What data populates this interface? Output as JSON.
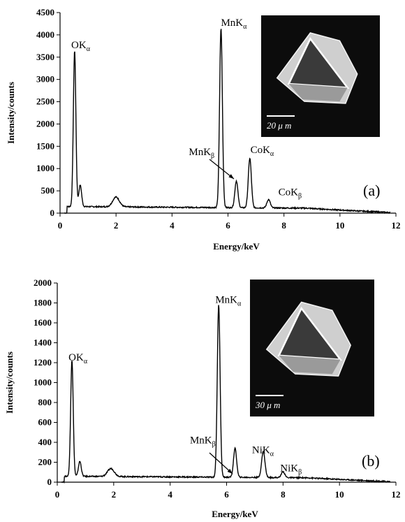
{
  "chart_data": [
    {
      "type": "line",
      "panel_label": "(a)",
      "xlabel": "Energy/keV",
      "ylabel": "Intensity/counts",
      "xlim": [
        0,
        12
      ],
      "ylim": [
        0,
        4500
      ],
      "xticks": [
        0,
        2,
        4,
        6,
        8,
        10,
        12
      ],
      "yticks": [
        0,
        500,
        1000,
        1500,
        2000,
        2500,
        3000,
        3500,
        4000,
        4500
      ],
      "background": 150,
      "peaks": [
        {
          "x": 0.52,
          "y": 3500,
          "w": 0.045
        },
        {
          "x": 0.72,
          "y": 480,
          "w": 0.05
        },
        {
          "x": 2.0,
          "y": 220,
          "w": 0.12
        },
        {
          "x": 5.75,
          "y": 4020,
          "w": 0.05
        },
        {
          "x": 6.3,
          "y": 600,
          "w": 0.055
        },
        {
          "x": 6.78,
          "y": 1110,
          "w": 0.055
        },
        {
          "x": 7.45,
          "y": 190,
          "w": 0.06
        }
      ],
      "annotations": [
        {
          "main": "OK",
          "sub": "α",
          "x": 0.4,
          "y": 3700
        },
        {
          "main": "MnK",
          "sub": "α",
          "x": 5.75,
          "y": 4200
        },
        {
          "main": "MnK",
          "sub": "β",
          "x": 4.6,
          "y": 1300
        },
        {
          "main": "CoK",
          "sub": "α",
          "x": 6.8,
          "y": 1350
        },
        {
          "main": "CoK",
          "sub": "β",
          "x": 7.8,
          "y": 400
        }
      ],
      "inset_scale": "20 μ m"
    },
    {
      "type": "line",
      "panel_label": "(b)",
      "xlabel": "Energy/keV",
      "ylabel": "Intensity/counts",
      "xlim": [
        0,
        12
      ],
      "ylim": [
        0,
        2000
      ],
      "xticks": [
        0,
        2,
        4,
        6,
        8,
        10,
        12
      ],
      "yticks": [
        0,
        200,
        400,
        600,
        800,
        1000,
        1200,
        1400,
        1600,
        1800,
        2000
      ],
      "background": 60,
      "peaks": [
        {
          "x": 0.52,
          "y": 1170,
          "w": 0.045
        },
        {
          "x": 0.8,
          "y": 150,
          "w": 0.05
        },
        {
          "x": 1.9,
          "y": 80,
          "w": 0.12
        },
        {
          "x": 5.72,
          "y": 1730,
          "w": 0.05
        },
        {
          "x": 6.3,
          "y": 290,
          "w": 0.055
        },
        {
          "x": 7.3,
          "y": 260,
          "w": 0.06
        },
        {
          "x": 8.0,
          "y": 60,
          "w": 0.06
        }
      ],
      "annotations": [
        {
          "main": "OK",
          "sub": "α",
          "x": 0.4,
          "y": 1220
        },
        {
          "main": "MnK",
          "sub": "α",
          "x": 5.6,
          "y": 1800
        },
        {
          "main": "MnK",
          "sub": "β",
          "x": 4.7,
          "y": 390
        },
        {
          "main": "NiK",
          "sub": "α",
          "x": 6.9,
          "y": 290
        },
        {
          "main": "NiK",
          "sub": "β",
          "x": 7.9,
          "y": 110
        }
      ],
      "inset_scale": "30 μ m"
    }
  ]
}
